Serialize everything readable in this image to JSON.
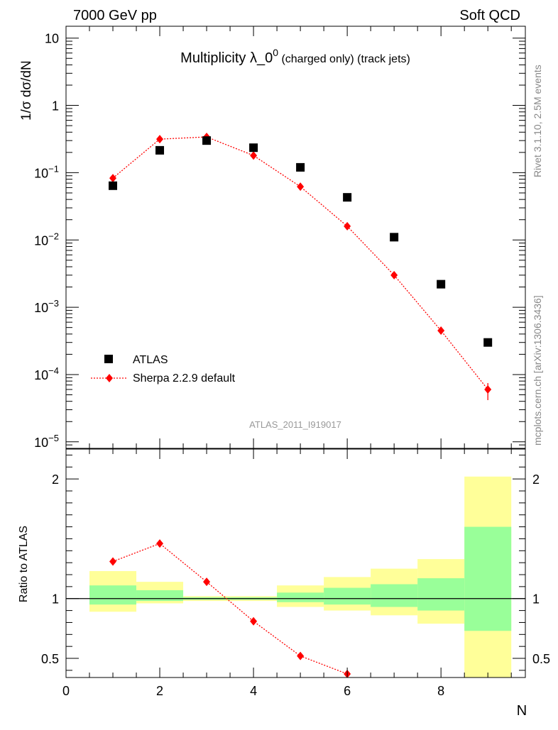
{
  "header": {
    "left": "7000 GeV pp",
    "right": "Soft QCD"
  },
  "side_labels": {
    "rivet": "Rivet 3.1.10,  2.5M events",
    "site": "mcplots.cern.ch [arXiv:1306.3436]"
  },
  "analysis_id": "ATLAS_2011_I919017",
  "chart_data": [
    {
      "type": "scatter",
      "title": "Multiplicity λ_0^0 (charged only) (track jets)",
      "ylabel": "1/σ dσ/dN",
      "yscale": "log",
      "ylim": [
        8e-06,
        15
      ],
      "xlim": [
        0,
        9.8
      ],
      "legend_position": "bottom-left",
      "series": [
        {
          "name": "ATLAS",
          "marker": "square",
          "color": "#000000",
          "x": [
            1,
            2,
            3,
            4,
            5,
            6,
            7,
            8,
            9
          ],
          "y": [
            0.064,
            0.215,
            0.3,
            0.235,
            0.12,
            0.043,
            0.011,
            0.0022,
            0.0003
          ]
        },
        {
          "name": "Sherpa 2.2.9 default",
          "marker": "diamond",
          "line": "dotted",
          "color": "#ff0000",
          "x": [
            1,
            2,
            3,
            4,
            5,
            6,
            7,
            8,
            9
          ],
          "y": [
            0.083,
            0.315,
            0.34,
            0.18,
            0.062,
            0.016,
            0.003,
            0.00045,
            6e-05
          ]
        }
      ]
    },
    {
      "type": "line",
      "ylabel": "Ratio to ATLAS",
      "xlabel": "N",
      "ylim": [
        0.34,
        2.25
      ],
      "xlim": [
        0,
        9.8
      ],
      "x_ticks": [
        "0",
        "2",
        "4",
        "6",
        "8"
      ],
      "y_ticks": [
        "0.5",
        "1",
        "2"
      ],
      "reference_line": 1,
      "bands": [
        {
          "x_range": [
            0.5,
            1.5
          ],
          "inner": [
            0.95,
            1.11
          ],
          "outer": [
            0.89,
            1.23
          ]
        },
        {
          "x_range": [
            1.5,
            2.5
          ],
          "inner": [
            0.98,
            1.07
          ],
          "outer": [
            0.96,
            1.14
          ]
        },
        {
          "x_range": [
            2.5,
            3.5
          ],
          "inner": [
            0.99,
            1.01
          ],
          "outer": [
            0.98,
            1.02
          ]
        },
        {
          "x_range": [
            3.5,
            4.5
          ],
          "inner": [
            0.99,
            1.01
          ],
          "outer": [
            0.98,
            1.02
          ]
        },
        {
          "x_range": [
            4.5,
            5.5
          ],
          "inner": [
            0.97,
            1.05
          ],
          "outer": [
            0.93,
            1.11
          ]
        },
        {
          "x_range": [
            5.5,
            6.5
          ],
          "inner": [
            0.95,
            1.09
          ],
          "outer": [
            0.9,
            1.18
          ]
        },
        {
          "x_range": [
            6.5,
            7.5
          ],
          "inner": [
            0.93,
            1.12
          ],
          "outer": [
            0.86,
            1.25
          ]
        },
        {
          "x_range": [
            7.5,
            8.5
          ],
          "inner": [
            0.9,
            1.17
          ],
          "outer": [
            0.79,
            1.33
          ]
        },
        {
          "x_range": [
            8.5,
            9.5
          ],
          "inner": [
            0.73,
            1.6
          ],
          "outer": [
            0.34,
            2.02
          ]
        }
      ],
      "series": [
        {
          "name": "Sherpa 2.2.9 default",
          "color": "#ff0000",
          "x": [
            1,
            2,
            3,
            4,
            5,
            6
          ],
          "y": [
            1.31,
            1.46,
            1.14,
            0.81,
            0.52,
            0.37
          ]
        }
      ]
    }
  ],
  "colors": {
    "inner_band": "#99ff99",
    "outer_band": "#ffff99",
    "mc": "#ff0000",
    "data": "#000000"
  }
}
